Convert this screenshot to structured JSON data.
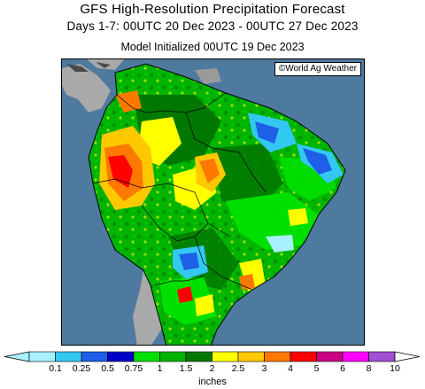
{
  "header": {
    "title": "GFS High-Resolution Precipitation Forecast",
    "period": "Days 1-7: 00UTC 20 Dec 2023 - 00UTC 27 Dec 2023",
    "init": "Model Initialized 00UTC 19 Dec 2023"
  },
  "map": {
    "credit": "©World Ag Weather",
    "region": "South America"
  },
  "legend": {
    "units": "inches",
    "ticks": [
      "0.1",
      "0.25",
      "0.5",
      "0.75",
      "1",
      "1.5",
      "2",
      "2.5",
      "3",
      "4",
      "5",
      "6",
      "8",
      "10"
    ],
    "colors": [
      "#a8f0ff",
      "#33c8f2",
      "#1e5fe8",
      "#0000c8",
      "#00e000",
      "#00b400",
      "#007800",
      "#ffff00",
      "#ffc800",
      "#ff7800",
      "#ff0000",
      "#c80082",
      "#ff00ff",
      "#a050d2"
    ]
  }
}
